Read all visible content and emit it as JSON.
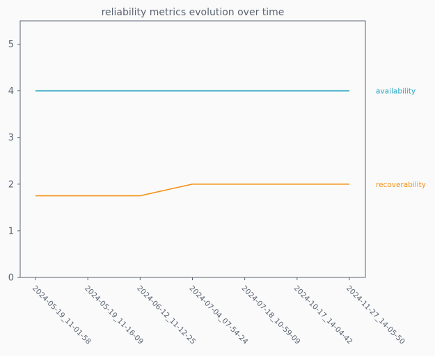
{
  "chart_data": {
    "type": "line",
    "title": "reliability metrics evolution over time",
    "xlabel": "",
    "ylabel": "",
    "x": [
      "2024-05-19_11-01-58",
      "2024-05-19_11-16-09",
      "2024-06-12_11-12-25",
      "2024-07-04_07-54-24",
      "2024-07-18_10-59-09",
      "2024-10-17_14-04-42",
      "2024-11-27_14-05-50"
    ],
    "series": [
      {
        "name": "availability",
        "color": "#2aa6c4",
        "values": [
          4,
          4,
          4,
          4,
          4,
          4,
          4
        ]
      },
      {
        "name": "recoverability",
        "color": "#f39419",
        "values": [
          1.75,
          1.75,
          1.75,
          2,
          2,
          2,
          2
        ]
      }
    ],
    "ylim": [
      0,
      5.5
    ],
    "yticks": [
      0,
      1,
      2,
      3,
      4,
      5
    ],
    "grid": false,
    "legend": "right-inline",
    "colors": {
      "axis": "#5a6372",
      "text": "#5a6372",
      "background": "#fafafa"
    }
  }
}
